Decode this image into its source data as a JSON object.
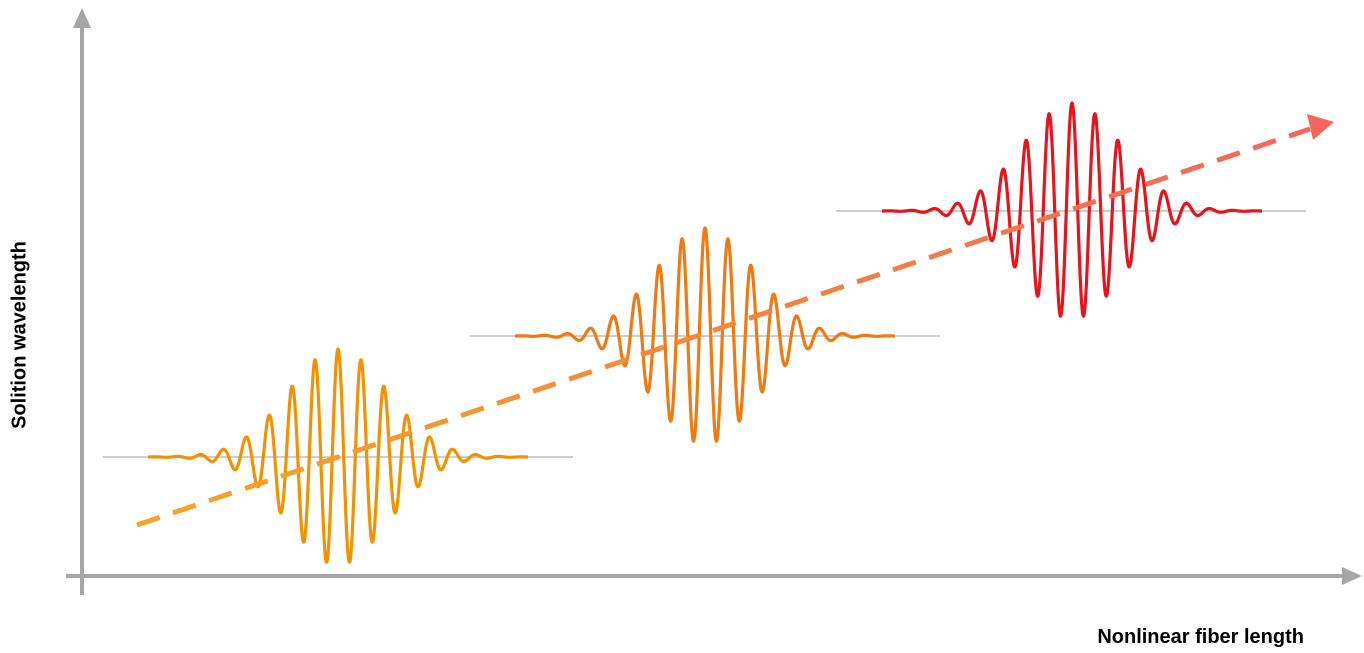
{
  "axes": {
    "x_label": "Nonlinear fiber length",
    "y_label": "Solition wavelength",
    "axis_color": "#a6a6a6"
  },
  "pulses": [
    {
      "name": "pulse-1",
      "color": "#f39200",
      "baseline_color": "#bdbdbd"
    },
    {
      "name": "pulse-2",
      "color": "#f07a10",
      "baseline_color": "#bdbdbd"
    },
    {
      "name": "pulse-3",
      "color": "#e8141c",
      "baseline_color": "#bdbdbd"
    }
  ],
  "trend_arrow": {
    "gradient_start": "#f5a623",
    "gradient_end": "#f2665b"
  }
}
